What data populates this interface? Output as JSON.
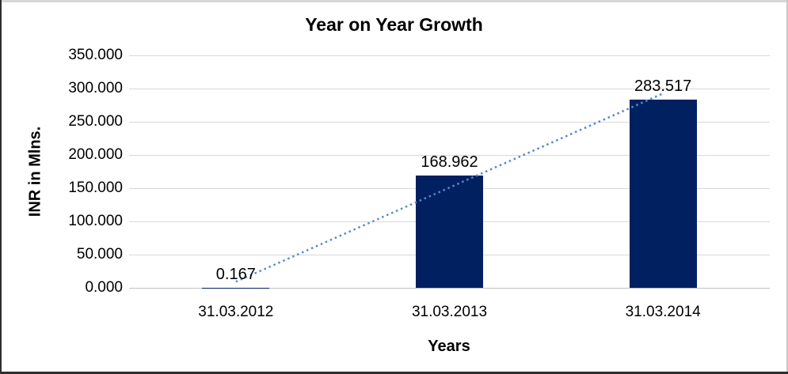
{
  "chart_data": {
    "type": "bar",
    "title": "Year on Year Growth",
    "xlabel": "Years",
    "ylabel": "INR in Mlns.",
    "categories": [
      "31.03.2012",
      "31.03.2013",
      "31.03.2014"
    ],
    "values": [
      0.167,
      168.962,
      283.517
    ],
    "data_labels": [
      "0.167",
      "168.962",
      "283.517"
    ],
    "ylim": [
      0,
      350
    ],
    "ytick_labels": [
      "350.000",
      "300.000",
      "250.000",
      "200.000",
      "150.000",
      "100.000",
      "50.000",
      "0.000"
    ],
    "grid": true,
    "legend": "none",
    "trendline": {
      "type": "linear",
      "style": "dotted"
    },
    "colors": {
      "bar": "#002060",
      "trendline": "#5589D0",
      "gridline": "#D9D9D9",
      "axis_line": "#BFBFBF",
      "text": "#000000",
      "background": "#FFFFFF"
    }
  }
}
